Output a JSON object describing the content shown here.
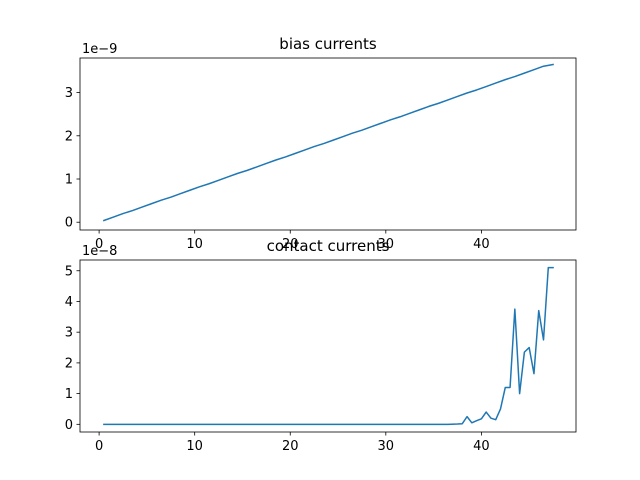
{
  "chart_data": [
    {
      "type": "line",
      "title": "bias currents",
      "offset_label": "1e−9",
      "xlabel": "",
      "ylabel": "",
      "xlim": [
        -2.0,
        49.9
      ],
      "ylim": [
        -0.18,
        3.8
      ],
      "x_ticks": [
        0,
        10,
        20,
        30,
        40
      ],
      "y_ticks": [
        0,
        1,
        2,
        3
      ],
      "color": "#1f77b4",
      "grid": false,
      "series": [
        {
          "x": [
            0.5,
            1.5,
            2.5,
            3.5,
            4.5,
            5.5,
            6.5,
            7.5,
            8.5,
            9.5,
            10.5,
            11.5,
            12.5,
            13.5,
            14.5,
            15.5,
            16.5,
            17.5,
            18.5,
            19.5,
            20.5,
            21.5,
            22.5,
            23.5,
            24.5,
            25.5,
            26.5,
            27.5,
            28.5,
            29.5,
            30.5,
            31.5,
            32.5,
            33.5,
            34.5,
            35.5,
            36.5,
            37.5,
            38.5,
            39.5,
            40.5,
            41.5,
            42.5,
            43.5,
            44.5,
            45.5,
            46.5,
            47.5
          ],
          "values": [
            0.04,
            0.12,
            0.2,
            0.27,
            0.35,
            0.43,
            0.51,
            0.58,
            0.66,
            0.74,
            0.82,
            0.89,
            0.97,
            1.05,
            1.13,
            1.2,
            1.28,
            1.36,
            1.44,
            1.51,
            1.59,
            1.67,
            1.75,
            1.82,
            1.9,
            1.98,
            2.06,
            2.13,
            2.21,
            2.29,
            2.37,
            2.44,
            2.52,
            2.6,
            2.68,
            2.75,
            2.83,
            2.91,
            2.99,
            3.06,
            3.14,
            3.22,
            3.3,
            3.37,
            3.45,
            3.53,
            3.61,
            3.65
          ]
        }
      ]
    },
    {
      "type": "line",
      "title": "contact currents",
      "offset_label": "1e−8",
      "xlabel": "",
      "ylabel": "",
      "xlim": [
        -2.0,
        49.9
      ],
      "ylim": [
        -0.25,
        5.35
      ],
      "x_ticks": [
        0,
        10,
        20,
        30,
        40
      ],
      "y_ticks": [
        0,
        1,
        2,
        3,
        4,
        5
      ],
      "color": "#1f77b4",
      "grid": false,
      "series": [
        {
          "x": [
            0.5,
            1.5,
            2.5,
            3.5,
            4.5,
            5.5,
            6.5,
            7.5,
            8.5,
            9.5,
            10.5,
            11.5,
            12.5,
            13.5,
            14.5,
            15.5,
            16.5,
            17.5,
            18.5,
            19.5,
            20.5,
            21.5,
            22.5,
            23.5,
            24.5,
            25.5,
            26.5,
            27.5,
            28.5,
            29.5,
            30.5,
            31.5,
            32.5,
            33.5,
            34.5,
            35.5,
            36.5,
            37.5,
            38.0,
            38.5,
            39.0,
            39.5,
            40.0,
            40.5,
            41.0,
            41.5,
            42.0,
            42.5,
            43.0,
            43.5,
            44.0,
            44.5,
            45.0,
            45.5,
            46.0,
            46.5,
            47.0,
            47.5
          ],
          "values": [
            0,
            0,
            0,
            0,
            0,
            0,
            0,
            0,
            0,
            0,
            0,
            0,
            0,
            0,
            0,
            0,
            0,
            0,
            0,
            0,
            0,
            0,
            0,
            0,
            0,
            0,
            0,
            0,
            0,
            0,
            0,
            0,
            0,
            0,
            0,
            0,
            0,
            0.01,
            0.02,
            0.25,
            0.05,
            0.12,
            0.18,
            0.4,
            0.2,
            0.15,
            0.5,
            1.2,
            1.2,
            3.75,
            1.0,
            2.35,
            2.5,
            1.65,
            3.7,
            2.75,
            5.1,
            5.1
          ]
        }
      ]
    }
  ]
}
